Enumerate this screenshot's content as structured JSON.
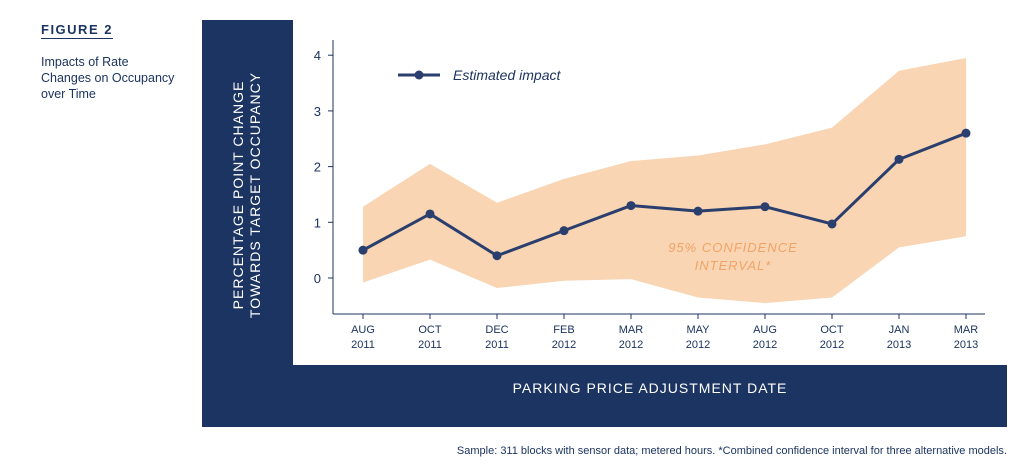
{
  "figure": {
    "label": "FIGURE 2",
    "caption": "Impacts of Rate Changes on Occupancy over Time"
  },
  "footnote": "Sample: 311 blocks with sensor data; metered hours.  *Combined confidence interval for three alternative models.",
  "colors": {
    "navy": "#1c3461",
    "band": "#f9d5b3",
    "band_label": "#f0a467",
    "line": "#2a3f6e"
  },
  "chart_data": {
    "type": "line",
    "ylabel_line1": "PERCENTAGE POINT CHANGE",
    "ylabel_line2": "TOWARDS TARGET OCCUPANCY",
    "xlabel": "PARKING PRICE ADJUSTMENT DATE",
    "ylim": [
      -0.6,
      4.25
    ],
    "yticks": [
      "0",
      "1",
      "2",
      "3",
      "4"
    ],
    "grid": false,
    "legend_position": "top-left",
    "categories": [
      {
        "month": "AUG",
        "year": "2011"
      },
      {
        "month": "OCT",
        "year": "2011"
      },
      {
        "month": "DEC",
        "year": "2011"
      },
      {
        "month": "FEB",
        "year": "2012"
      },
      {
        "month": "MAR",
        "year": "2012"
      },
      {
        "month": "MAY",
        "year": "2012"
      },
      {
        "month": "AUG",
        "year": "2012"
      },
      {
        "month": "OCT",
        "year": "2012"
      },
      {
        "month": "JAN",
        "year": "2013"
      },
      {
        "month": "MAR",
        "year": "2013"
      }
    ],
    "series": [
      {
        "name": "Estimated impact",
        "values": [
          0.5,
          1.15,
          0.4,
          0.85,
          1.3,
          1.2,
          1.28,
          0.97,
          2.13,
          2.6
        ]
      }
    ],
    "confidence_band": {
      "label_line1": "95% CONFIDENCE",
      "label_line2": "INTERVAL*",
      "upper": [
        1.28,
        2.05,
        1.35,
        1.78,
        2.1,
        2.2,
        2.4,
        2.7,
        3.72,
        3.95
      ],
      "lower": [
        -0.08,
        0.33,
        -0.18,
        -0.05,
        -0.02,
        -0.35,
        -0.45,
        -0.35,
        0.55,
        0.75
      ]
    }
  }
}
